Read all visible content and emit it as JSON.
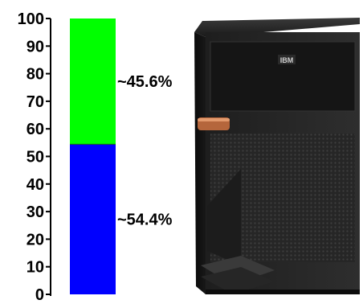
{
  "chart_data": {
    "type": "bar",
    "stacked": true,
    "orientation": "vertical",
    "ylim": [
      0,
      100
    ],
    "y_ticks": [
      0,
      10,
      20,
      30,
      40,
      50,
      60,
      70,
      80,
      90,
      100
    ],
    "y_tick_labels": [
      "0",
      "10",
      "20",
      "30",
      "40",
      "50",
      "60",
      "70",
      "80",
      "90",
      "100"
    ],
    "segments": [
      {
        "value": 54.4,
        "label": "~54.4%",
        "color": "#0000ff"
      },
      {
        "value": 45.6,
        "label": "~45.6%",
        "color": "#00ff00"
      }
    ],
    "grid": false,
    "legend": "none"
  },
  "image": {
    "subject": "server-tower",
    "badge": "IBM"
  }
}
